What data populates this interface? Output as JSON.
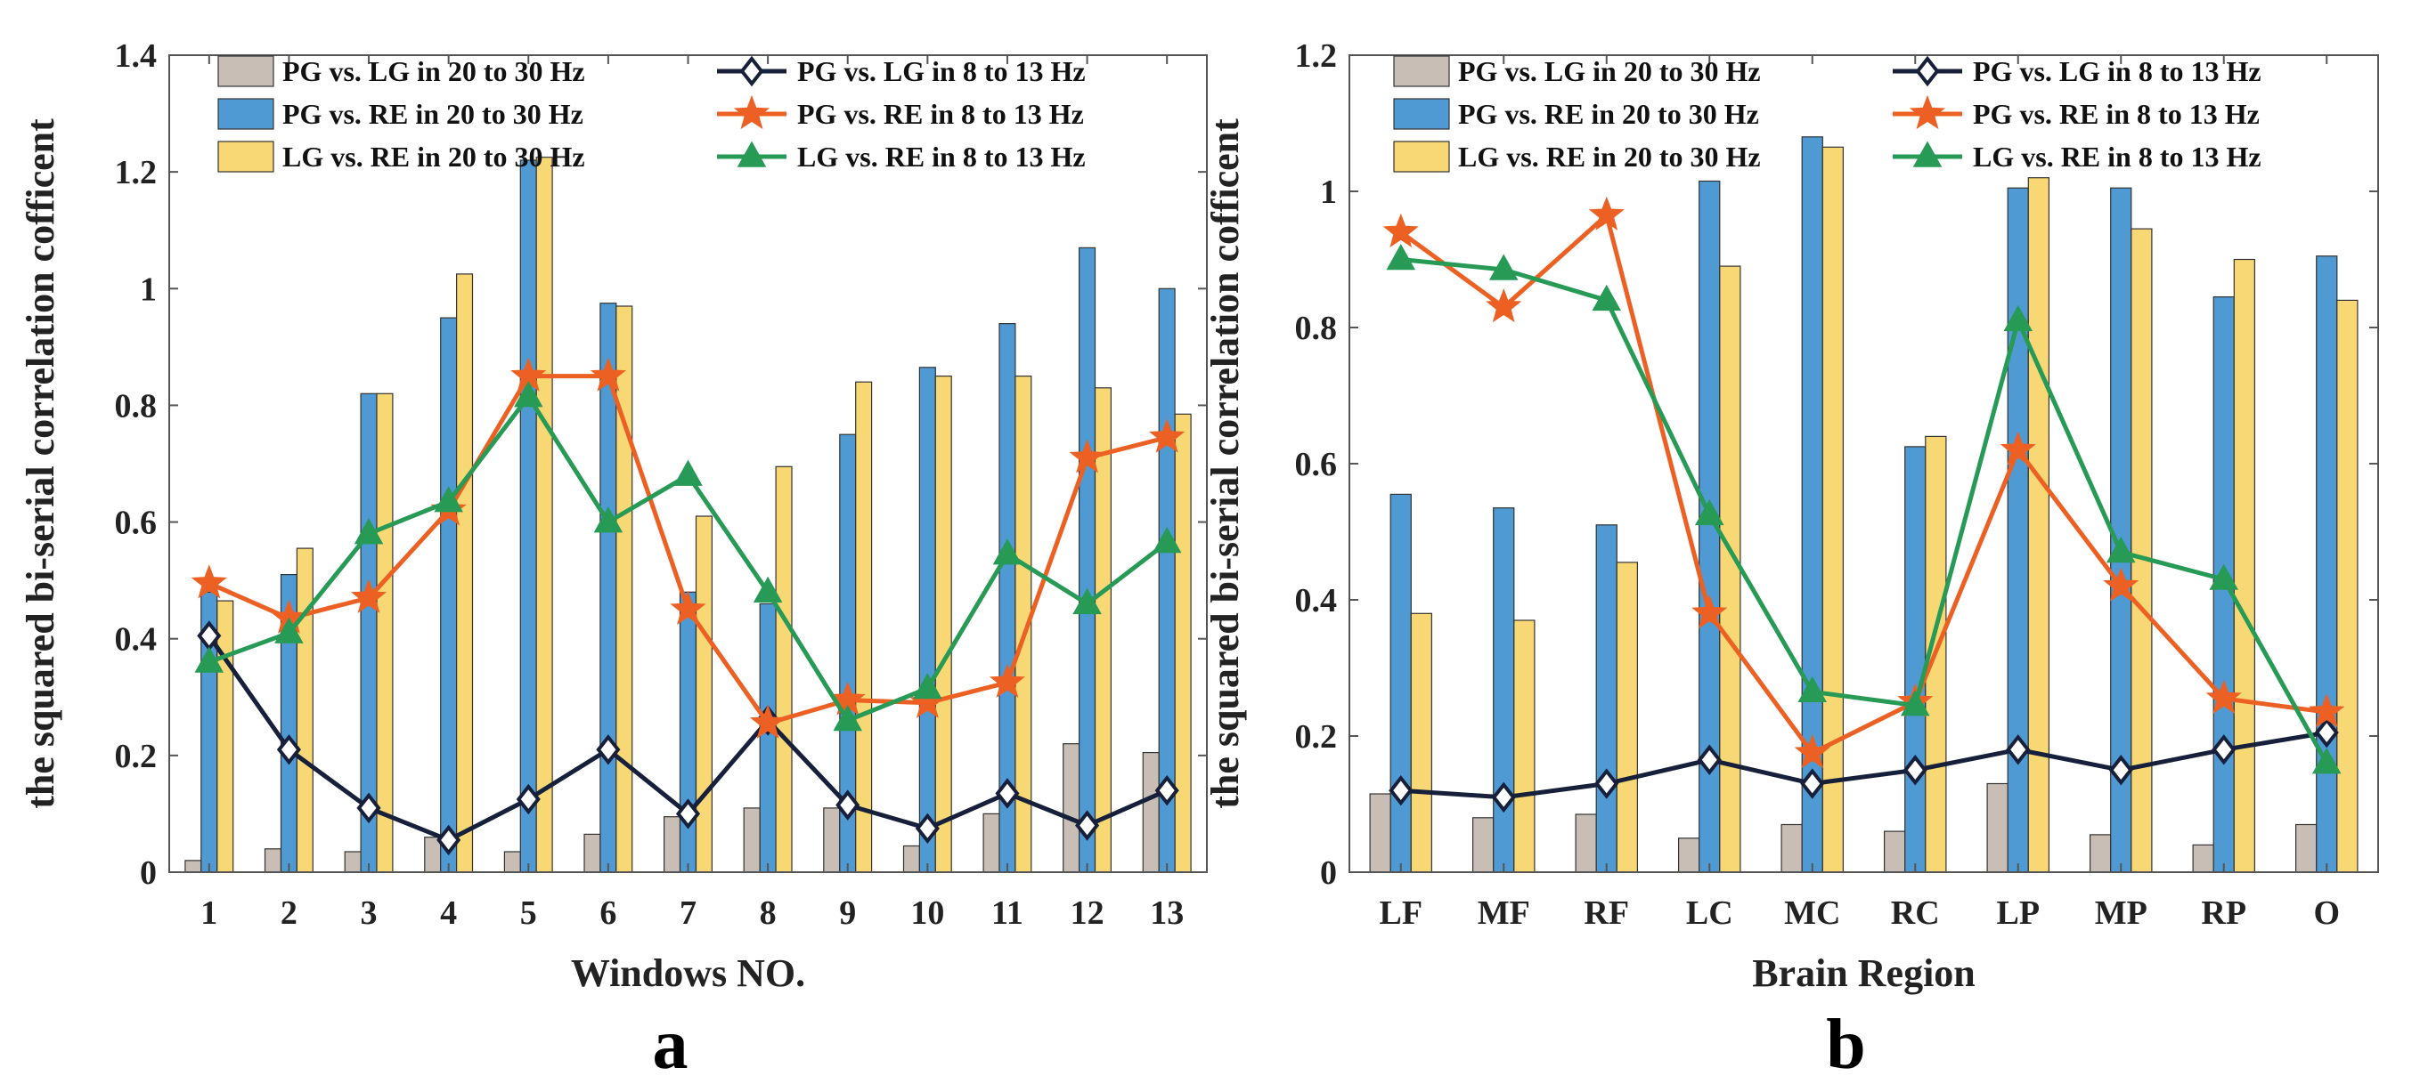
{
  "colors": {
    "pg_lg_bar": "#c8beb6",
    "pg_re_bar": "#4f9ad2",
    "lg_re_bar": "#f8d874",
    "pg_lg_line": "#16203a",
    "pg_re_line": "#ec6123",
    "lg_re_line": "#279a56"
  },
  "chart_data": [
    {
      "panel": "a",
      "type": "bar",
      "title": "",
      "xlabel": "Windows NO.",
      "ylabel": "the squared bi-serial correlation cofficent",
      "ylim": [
        0,
        1.4
      ],
      "yticks": [
        "0",
        "0.2",
        "0.4",
        "0.6",
        "0.8",
        "1",
        "1.2",
        "1.4"
      ],
      "categories": [
        "1",
        "2",
        "3",
        "4",
        "5",
        "6",
        "7",
        "8",
        "9",
        "10",
        "11",
        "12",
        "13"
      ],
      "bar_series": [
        {
          "name": "PG vs. LG in 20 to 30 Hz",
          "values": [
            0.02,
            0.04,
            0.035,
            0.06,
            0.035,
            0.065,
            0.095,
            0.11,
            0.11,
            0.045,
            0.1,
            0.22,
            0.205
          ]
        },
        {
          "name": "PG vs. RE in 20 to 30 Hz",
          "values": [
            0.48,
            0.51,
            0.82,
            0.95,
            1.22,
            0.975,
            0.48,
            0.46,
            0.75,
            0.865,
            0.94,
            1.07,
            1.0
          ]
        },
        {
          "name": "LG vs. RE in 20 to 30 Hz",
          "values": [
            0.465,
            0.555,
            0.82,
            1.025,
            1.225,
            0.97,
            0.61,
            0.695,
            0.84,
            0.85,
            0.85,
            0.83,
            0.785
          ]
        }
      ],
      "line_series": [
        {
          "name": "PG vs. LG in 8 to 13 Hz",
          "marker": "diamond",
          "values": [
            0.405,
            0.21,
            0.11,
            0.055,
            0.125,
            0.21,
            0.1,
            0.26,
            0.115,
            0.075,
            0.135,
            0.08,
            0.14
          ]
        },
        {
          "name": "PG vs. RE in 8 to 13 Hz",
          "marker": "star",
          "values": [
            0.495,
            0.435,
            0.47,
            0.62,
            0.85,
            0.85,
            0.45,
            0.255,
            0.295,
            0.29,
            0.325,
            0.71,
            0.745
          ]
        },
        {
          "name": "LG vs. RE in 8 to 13 Hz",
          "marker": "triangle",
          "values": [
            0.36,
            0.41,
            0.58,
            0.635,
            0.815,
            0.6,
            0.68,
            0.48,
            0.26,
            0.315,
            0.545,
            0.46,
            0.565
          ]
        }
      ],
      "panel_label": "a"
    },
    {
      "panel": "b",
      "type": "bar",
      "title": "",
      "xlabel": "Brain Region",
      "ylabel": "the squared bi-serial correlation cofficent",
      "ylim": [
        0,
        1.2
      ],
      "yticks": [
        "0",
        "0.2",
        "0.4",
        "0.6",
        "0.8",
        "1",
        "1.2"
      ],
      "categories": [
        "LF",
        "MF",
        "RF",
        "LC",
        "MC",
        "RC",
        "LP",
        "MP",
        "RP",
        "O"
      ],
      "bar_series": [
        {
          "name": "PG vs. LG in 20 to 30 Hz",
          "values": [
            0.115,
            0.08,
            0.085,
            0.05,
            0.07,
            0.06,
            0.13,
            0.055,
            0.04,
            0.07
          ]
        },
        {
          "name": "PG vs. RE in 20 to 30 Hz",
          "values": [
            0.555,
            0.535,
            0.51,
            1.015,
            1.08,
            0.625,
            1.005,
            1.005,
            0.845,
            0.905
          ]
        },
        {
          "name": "LG vs. RE in 20 to 30 Hz",
          "values": [
            0.38,
            0.37,
            0.455,
            0.89,
            1.065,
            0.64,
            1.02,
            0.945,
            0.9,
            0.84
          ]
        }
      ],
      "line_series": [
        {
          "name": "PG vs. LG in 8 to 13 Hz",
          "marker": "diamond",
          "values": [
            0.12,
            0.11,
            0.13,
            0.165,
            0.13,
            0.15,
            0.18,
            0.15,
            0.18,
            0.205
          ]
        },
        {
          "name": "PG vs. RE in 8 to 13 Hz",
          "marker": "star",
          "values": [
            0.94,
            0.83,
            0.965,
            0.38,
            0.175,
            0.25,
            0.62,
            0.42,
            0.255,
            0.235
          ]
        },
        {
          "name": "LG vs. RE in 8 to 13 Hz",
          "marker": "triangle",
          "values": [
            0.9,
            0.885,
            0.84,
            0.525,
            0.265,
            0.245,
            0.81,
            0.47,
            0.43,
            0.16
          ]
        }
      ],
      "panel_label": "b"
    }
  ]
}
